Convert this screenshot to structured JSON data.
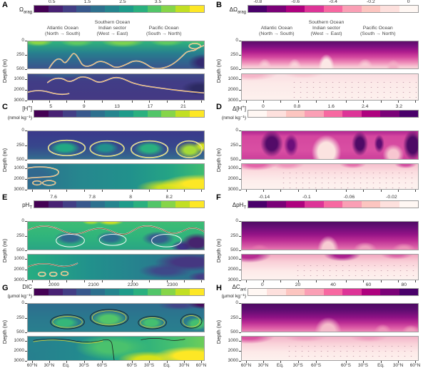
{
  "colors": {
    "viridis": [
      "#440154",
      "#482173",
      "#433e85",
      "#38588c",
      "#2d708e",
      "#25858e",
      "#1e9b8a",
      "#2ab07f",
      "#52c569",
      "#86d549",
      "#c2df23",
      "#fde725"
    ],
    "rdpu": [
      "#fff7f3",
      "#fde0dd",
      "#fcc5c0",
      "#fa9fb5",
      "#f768a1",
      "#dd3497",
      "#ae017e",
      "#7a0177",
      "#49006a"
    ],
    "contour_orange": "#efa23b",
    "contour_yellow": "#ddd12f",
    "contour_white": "#ffffff",
    "axis": "#333333",
    "frame": "#a0a0a0"
  },
  "chart_data": {
    "type": "heatmap",
    "layout": "4x2 grid of latitude-depth ocean section contour maps; each panel split into an upper (0-500 m) and a lower (500-3000 m) sub-axis; left column viridis colormap, right column pink-purple colormap with stippled dots in the deep sub-axis",
    "x_sections": [
      {
        "lines": [
          "Atlantic Ocean",
          "(North → South)"
        ]
      },
      {
        "lines": [
          "Southern Ocean",
          "Indian sector",
          "(West → East)"
        ]
      },
      {
        "lines": [
          "Pacific Ocean",
          "(South → North)"
        ]
      }
    ],
    "x_ticks": [
      "60°N",
      "30°N",
      "Eq.",
      "30°S",
      "60°S",
      "60°S",
      "30°S",
      "Eq.",
      "30°N",
      "60°N"
    ],
    "depth_axis": {
      "label": "Depth (m)",
      "upper_range_m": [
        0,
        500
      ],
      "upper_ticks": [
        "0",
        "250",
        "500"
      ],
      "lower_range_m": [
        500,
        3000
      ],
      "lower_ticks": [
        "1000",
        "2000",
        "3000"
      ]
    },
    "panels": [
      {
        "letter": "A",
        "variable": "Ωarag",
        "label": {
          "base": "Ω",
          "sub": "arag"
        },
        "units": "",
        "colormap": "viridis",
        "colorbar_ticks": [
          "0.5",
          "1.5",
          "2.5",
          "3.5"
        ],
        "colorbar_range": [
          0,
          4.8
        ]
      },
      {
        "letter": "B",
        "variable": "ΔΩarag",
        "label": {
          "base": "ΔΩ",
          "sub": "arag"
        },
        "units": "",
        "colormap": "rdpu_r",
        "colorbar_ticks": [
          "-0.8",
          "-0.6",
          "-0.4",
          "-0.2",
          "0"
        ],
        "colorbar_range": [
          -0.85,
          0.05
        ]
      },
      {
        "letter": "C",
        "variable": "[H⁺]",
        "label": {
          "base": "[H",
          "sup": "+",
          "end": "]"
        },
        "units": "(nmol kg⁻¹)",
        "colormap": "viridis",
        "colorbar_ticks": [
          "5",
          "9",
          "13",
          "17",
          "21"
        ],
        "colorbar_range": [
          3,
          23.5
        ]
      },
      {
        "letter": "D",
        "variable": "Δ[H⁺]",
        "label": {
          "base": "Δ[H",
          "sup": "+",
          "end": "]"
        },
        "units": "(nmol kg⁻¹)",
        "colormap": "rdpu",
        "colorbar_ticks": [
          "0",
          "0.8",
          "1.6",
          "2.4",
          "3.2"
        ],
        "colorbar_range": [
          -0.35,
          3.65
        ]
      },
      {
        "letter": "E",
        "variable": "pHT",
        "label": {
          "base": "pH",
          "sub": "T"
        },
        "units": "",
        "colormap": "viridis",
        "colorbar_ticks": [
          "7.6",
          "7.8",
          "8",
          "8.2"
        ],
        "colorbar_range": [
          7.5,
          8.38
        ]
      },
      {
        "letter": "F",
        "variable": "ΔpHT",
        "label": {
          "base": "ΔpH",
          "sub": "T"
        },
        "units": "",
        "colormap": "rdpu_r",
        "colorbar_ticks": [
          "-0.14",
          "-0.1",
          "-0.06",
          "-0.02"
        ],
        "colorbar_range": [
          -0.155,
          0.005
        ]
      },
      {
        "letter": "G",
        "variable": "DIC",
        "label": {
          "base": "DIC"
        },
        "units": "(µmol kg⁻¹)",
        "colormap": "viridis",
        "colorbar_ticks": [
          "2000",
          "2100",
          "2200",
          "2300"
        ],
        "colorbar_range": [
          1950,
          2380
        ]
      },
      {
        "letter": "H",
        "variable": "ΔCant",
        "label": {
          "base": "ΔC",
          "sub": "ant"
        },
        "units": "(µmol kg⁻¹)",
        "colormap": "rdpu",
        "colorbar_ticks": [
          "0",
          "20",
          "40",
          "60",
          "80"
        ],
        "colorbar_range": [
          -8,
          88
        ]
      }
    ]
  }
}
